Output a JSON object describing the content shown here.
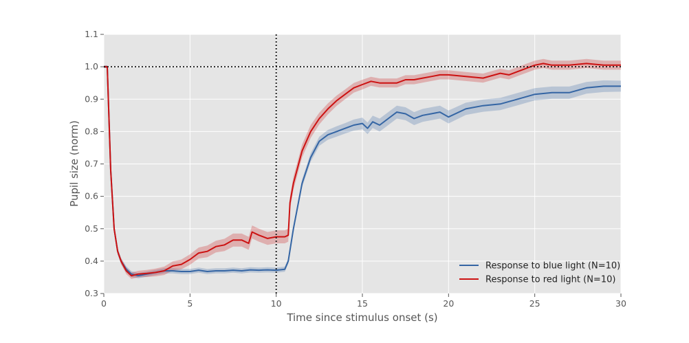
{
  "chart_data": {
    "type": "line",
    "title": "",
    "xlabel": "Time since stimulus onset (s)",
    "ylabel": "Pupil size (norm)",
    "xlim": [
      0,
      30
    ],
    "ylim": [
      0.3,
      1.1
    ],
    "xticks": [
      0,
      5,
      10,
      15,
      20,
      25,
      30
    ],
    "xtick_labels": [
      "0",
      "5",
      "10",
      "15",
      "20",
      "25",
      "30"
    ],
    "yticks": [
      0.3,
      0.4,
      0.5,
      0.6,
      0.7,
      0.8,
      0.9,
      1.0,
      1.1
    ],
    "ytick_labels": [
      "0.3",
      "0.4",
      "0.5",
      "0.6",
      "0.7",
      "0.8",
      "0.9",
      "1.0",
      "1.1"
    ],
    "grid": true,
    "background_color": "#e5e5e5",
    "legend_position": "lower-right",
    "reference_lines": {
      "horizontal_y": 1.0,
      "vertical_x": 10
    },
    "series": [
      {
        "name": "Response to blue light (N=10)",
        "color": "#3465a4",
        "x": [
          0,
          0.2,
          0.4,
          0.6,
          0.8,
          1.0,
          1.3,
          1.6,
          2.0,
          2.5,
          3.0,
          3.5,
          4.0,
          4.5,
          5.0,
          5.5,
          6.0,
          6.5,
          7.0,
          7.5,
          8.0,
          8.5,
          9.0,
          9.5,
          10.0,
          10.5,
          10.7,
          11.0,
          11.5,
          12.0,
          12.5,
          13.0,
          13.5,
          14.0,
          14.5,
          15.0,
          15.3,
          15.6,
          16.0,
          16.5,
          17.0,
          17.5,
          18.0,
          18.5,
          19.0,
          19.5,
          20.0,
          21.0,
          22.0,
          23.0,
          24.0,
          25.0,
          26.0,
          27.0,
          28.0,
          29.0,
          30.0
        ],
        "y": [
          1.0,
          1.0,
          0.68,
          0.5,
          0.43,
          0.4,
          0.375,
          0.36,
          0.355,
          0.36,
          0.365,
          0.37,
          0.37,
          0.368,
          0.368,
          0.372,
          0.368,
          0.37,
          0.37,
          0.372,
          0.37,
          0.373,
          0.372,
          0.373,
          0.372,
          0.375,
          0.4,
          0.5,
          0.64,
          0.72,
          0.77,
          0.79,
          0.8,
          0.81,
          0.82,
          0.825,
          0.81,
          0.83,
          0.82,
          0.84,
          0.86,
          0.855,
          0.84,
          0.85,
          0.855,
          0.86,
          0.845,
          0.87,
          0.88,
          0.885,
          0.9,
          0.915,
          0.92,
          0.92,
          0.935,
          0.94,
          0.94
        ],
        "band": [
          0.004,
          0.004,
          0.006,
          0.008,
          0.009,
          0.009,
          0.009,
          0.009,
          0.008,
          0.008,
          0.008,
          0.008,
          0.008,
          0.008,
          0.008,
          0.008,
          0.008,
          0.008,
          0.008,
          0.008,
          0.008,
          0.008,
          0.008,
          0.008,
          0.008,
          0.008,
          0.008,
          0.01,
          0.012,
          0.013,
          0.014,
          0.015,
          0.016,
          0.016,
          0.017,
          0.018,
          0.018,
          0.019,
          0.02,
          0.02,
          0.02,
          0.02,
          0.02,
          0.02,
          0.02,
          0.02,
          0.02,
          0.019,
          0.019,
          0.019,
          0.019,
          0.019,
          0.019,
          0.019,
          0.018,
          0.018,
          0.017
        ]
      },
      {
        "name": "Response to red light (N=10)",
        "color": "#cc1111",
        "x": [
          0,
          0.2,
          0.4,
          0.6,
          0.8,
          1.0,
          1.3,
          1.6,
          2.0,
          2.5,
          3.0,
          3.5,
          4.0,
          4.5,
          5.0,
          5.5,
          6.0,
          6.5,
          7.0,
          7.5,
          8.0,
          8.4,
          8.6,
          9.0,
          9.5,
          10.0,
          10.5,
          10.7,
          10.8,
          11.0,
          11.5,
          12.0,
          12.5,
          13.0,
          13.5,
          14.0,
          14.5,
          15.0,
          15.5,
          16.0,
          16.5,
          17.0,
          17.5,
          18.0,
          18.5,
          19.0,
          19.5,
          20.0,
          21.0,
          22.0,
          23.0,
          23.5,
          24.0,
          24.5,
          25.0,
          25.5,
          26.0,
          27.0,
          28.0,
          29.0,
          30.0
        ],
        "y": [
          1.0,
          1.0,
          0.68,
          0.5,
          0.43,
          0.4,
          0.37,
          0.355,
          0.36,
          0.362,
          0.365,
          0.37,
          0.385,
          0.39,
          0.405,
          0.425,
          0.43,
          0.445,
          0.45,
          0.465,
          0.465,
          0.455,
          0.49,
          0.48,
          0.47,
          0.475,
          0.475,
          0.48,
          0.58,
          0.64,
          0.74,
          0.8,
          0.84,
          0.87,
          0.895,
          0.915,
          0.935,
          0.945,
          0.955,
          0.95,
          0.95,
          0.95,
          0.96,
          0.96,
          0.965,
          0.97,
          0.975,
          0.975,
          0.97,
          0.965,
          0.98,
          0.975,
          0.985,
          0.995,
          1.005,
          1.01,
          1.005,
          1.005,
          1.01,
          1.005,
          1.005
        ],
        "band": [
          0.004,
          0.004,
          0.006,
          0.008,
          0.009,
          0.009,
          0.01,
          0.01,
          0.01,
          0.011,
          0.012,
          0.013,
          0.014,
          0.015,
          0.016,
          0.017,
          0.018,
          0.018,
          0.019,
          0.02,
          0.02,
          0.02,
          0.02,
          0.02,
          0.02,
          0.02,
          0.02,
          0.02,
          0.02,
          0.02,
          0.02,
          0.02,
          0.018,
          0.017,
          0.016,
          0.015,
          0.015,
          0.015,
          0.014,
          0.014,
          0.014,
          0.014,
          0.014,
          0.014,
          0.014,
          0.014,
          0.014,
          0.014,
          0.014,
          0.014,
          0.014,
          0.014,
          0.014,
          0.014,
          0.014,
          0.014,
          0.014,
          0.014,
          0.014,
          0.014,
          0.014
        ]
      }
    ]
  }
}
